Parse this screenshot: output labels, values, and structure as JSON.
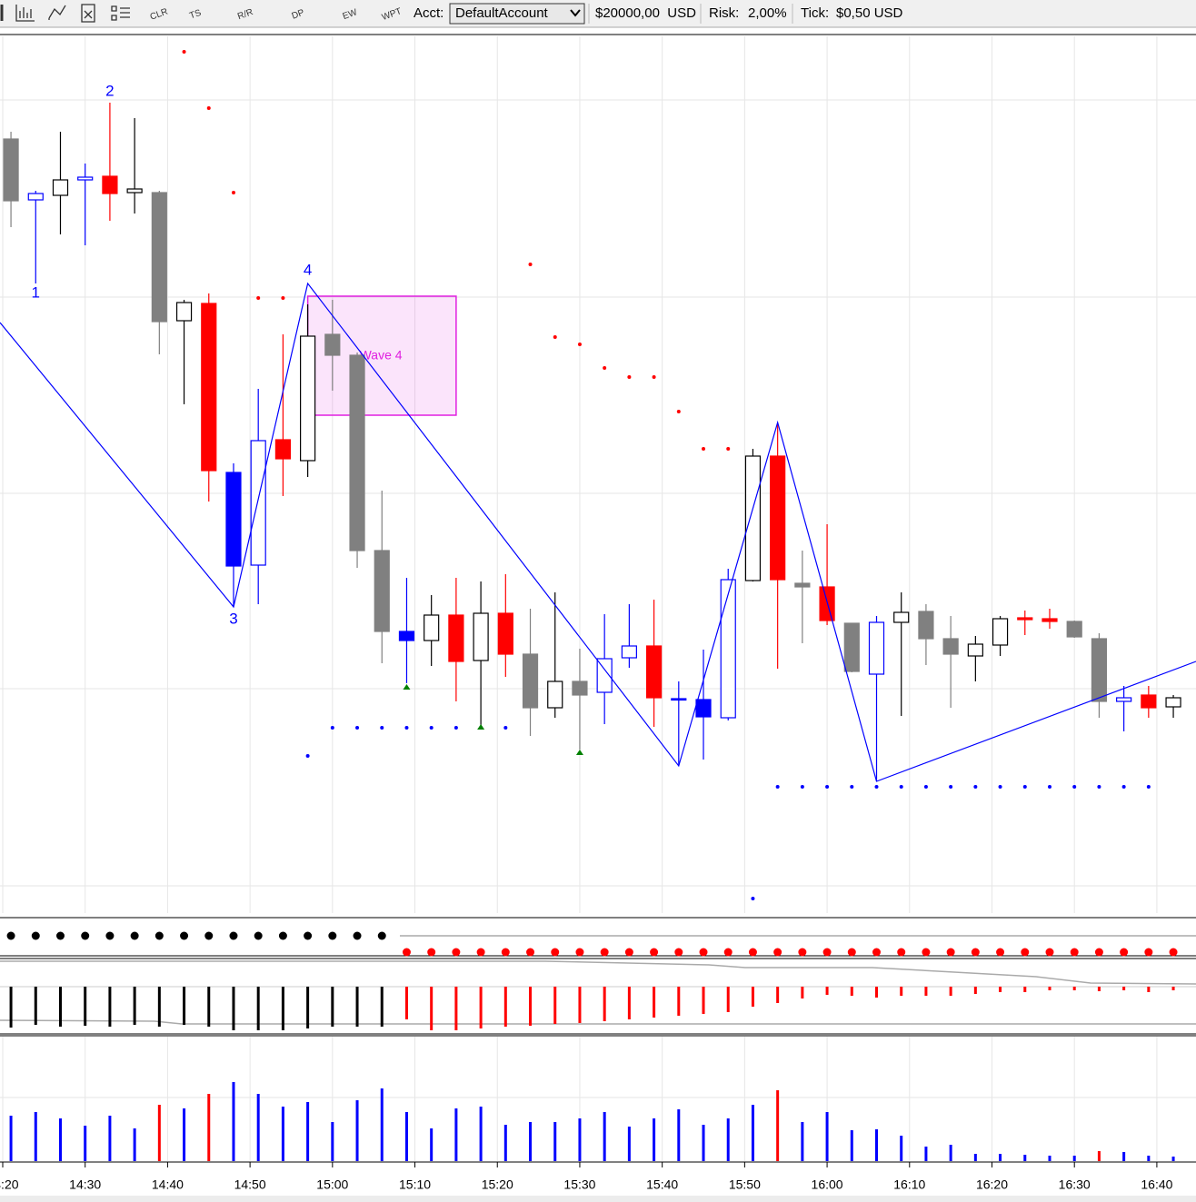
{
  "toolbar": {
    "buttons": [
      "CLR",
      "TS",
      "R/R",
      "DP",
      "EW",
      "WPT"
    ],
    "acct_label": "Acct:",
    "account": "DefaultAccount",
    "balance": "$20000,00  USD",
    "risk_label": "Risk:",
    "risk": "2,00%",
    "tick_label": "Tick:",
    "tick": "$0,50 USD"
  },
  "chart_data": {
    "type": "candlestick",
    "xlim": [
      859.67,
      1004.75
    ],
    "ylim": [
      0,
      965
    ],
    "xticks": [
      {
        "value": 860,
        "label": "14:20"
      },
      {
        "value": 870,
        "label": "14:30"
      },
      {
        "value": 880,
        "label": "14:40"
      },
      {
        "value": 890,
        "label": "14:50"
      },
      {
        "value": 900,
        "label": "15:00"
      },
      {
        "value": 910,
        "label": "15:10"
      },
      {
        "value": 920,
        "label": "15:20"
      },
      {
        "value": 930,
        "label": "15:30"
      },
      {
        "value": 940,
        "label": "15:40"
      },
      {
        "value": 950,
        "label": "15:50"
      },
      {
        "value": 960,
        "label": "16:00"
      },
      {
        "value": 970,
        "label": "16:10"
      },
      {
        "value": 980,
        "label": "16:20"
      },
      {
        "value": 990,
        "label": "16:30"
      },
      {
        "value": 1000,
        "label": "16:40"
      }
    ],
    "grid": true,
    "x": [
      861,
      864,
      867,
      870,
      873,
      876,
      879,
      882,
      885,
      888,
      891,
      894,
      897,
      900,
      903,
      906,
      909,
      912,
      915,
      918,
      921,
      924,
      927,
      930,
      933,
      936,
      939,
      942,
      945,
      948,
      951,
      954,
      957,
      960,
      963,
      966,
      969,
      972,
      975,
      978,
      981,
      984,
      987,
      990,
      993,
      996,
      999,
      1002
    ],
    "open": [
      852,
      785,
      790,
      807,
      811,
      793,
      793,
      652,
      671,
      382,
      383,
      521,
      498,
      637,
      614,
      399,
      310,
      300,
      328,
      278,
      330,
      285,
      226,
      255,
      243,
      281,
      294,
      236,
      235,
      215,
      366,
      503,
      363,
      359,
      319,
      263,
      320,
      332,
      302,
      283,
      295,
      325,
      324,
      321,
      302,
      233,
      240,
      227
    ],
    "high": [
      860,
      795,
      860,
      825,
      892,
      875,
      795,
      675,
      682,
      495,
      577,
      637,
      670,
      675,
      617,
      465,
      369,
      350,
      369,
      365,
      373,
      335,
      353,
      291,
      329,
      340,
      345,
      255,
      290,
      379,
      511,
      539,
      399,
      428,
      319,
      327,
      353,
      340,
      327,
      305,
      327,
      333,
      335,
      322,
      308,
      250,
      250,
      240
    ],
    "low": [
      755,
      693,
      747,
      735,
      762,
      770,
      615,
      560,
      453,
      337,
      340,
      459,
      480,
      575,
      380,
      275,
      253,
      272,
      233,
      205,
      260,
      195,
      215,
      180,
      208,
      270,
      205,
      162,
      169,
      212,
      365,
      269,
      297,
      317,
      265,
      145,
      217,
      273,
      226,
      255,
      283,
      306,
      313,
      303,
      215,
      200,
      215,
      215
    ],
    "close": [
      784,
      792,
      807,
      810,
      792,
      797,
      651,
      672,
      487,
      485,
      520,
      500,
      635,
      614,
      399,
      310,
      300,
      328,
      277,
      330,
      285,
      226,
      255,
      240,
      280,
      294,
      237,
      235,
      216,
      367,
      503,
      367,
      359,
      322,
      266,
      320,
      331,
      302,
      285,
      296,
      324,
      323,
      321,
      304,
      233,
      237,
      226,
      237
    ],
    "fills": [
      "#808080",
      "#ffffff",
      "#ffffff",
      "#ffffff",
      "#ff0000",
      "#ffffff",
      "#808080",
      "#ffffff",
      "#ff0000",
      "#0000ff",
      "#ffffff",
      "#ff0000",
      "#ffffff",
      "#808080",
      "#808080",
      "#808080",
      "#0000ff",
      "#ffffff",
      "#ff0000",
      "#ffffff",
      "#ff0000",
      "#808080",
      "#ffffff",
      "#808080",
      "#ffffff",
      "#ffffff",
      "#ff0000",
      "#0000ff",
      "#0000ff",
      "#ffffff",
      "#ffffff",
      "#ff0000",
      "#808080",
      "#ff0000",
      "#808080",
      "#ffffff",
      "#ffffff",
      "#808080",
      "#808080",
      "#ffffff",
      "#ffffff",
      "#ff0000",
      "#ff0000",
      "#808080",
      "#808080",
      "#ffffff",
      "#ff0000",
      "#ffffff"
    ],
    "edges": [
      "#808080",
      "#0000ff",
      "#000000",
      "#0000ff",
      "#ff0000",
      "#000000",
      "#808080",
      "#000000",
      "#ff0000",
      "#0000ff",
      "#0000ff",
      "#ff0000",
      "#000000",
      "#808080",
      "#808080",
      "#808080",
      "#0000ff",
      "#000000",
      "#ff0000",
      "#000000",
      "#ff0000",
      "#808080",
      "#000000",
      "#808080",
      "#0000ff",
      "#0000ff",
      "#ff0000",
      "#0000ff",
      "#0000ff",
      "#0000ff",
      "#000000",
      "#ff0000",
      "#808080",
      "#ff0000",
      "#808080",
      "#0000ff",
      "#000000",
      "#808080",
      "#808080",
      "#000000",
      "#000000",
      "#ff0000",
      "#ff0000",
      "#808080",
      "#808080",
      "#0000ff",
      "#ff0000",
      "#000000"
    ],
    "stops_above": {
      "color": "#ff0000",
      "values": [
        null,
        null,
        null,
        null,
        null,
        null,
        null,
        948,
        886,
        793,
        677,
        677,
        null,
        null,
        null,
        null,
        null,
        null,
        null,
        null,
        null,
        714,
        634,
        626,
        600,
        590,
        590,
        552,
        511,
        511,
        null,
        null,
        null,
        null,
        null,
        null,
        null,
        null,
        null,
        null,
        null,
        null,
        null,
        null,
        null,
        null,
        null,
        null
      ]
    },
    "stops_below": {
      "color": "#0000ff",
      "values": [
        null,
        null,
        null,
        null,
        null,
        null,
        null,
        null,
        null,
        null,
        null,
        null,
        173,
        204,
        204,
        204,
        204,
        204,
        204,
        204,
        204,
        null,
        null,
        null,
        null,
        null,
        null,
        null,
        null,
        null,
        16,
        139,
        139,
        139,
        139,
        139,
        139,
        139,
        139,
        139,
        139,
        139,
        139,
        139,
        139,
        139,
        139,
        null
      ]
    },
    "signals": {
      "color": "#008000",
      "values": [
        null,
        null,
        null,
        null,
        null,
        null,
        null,
        null,
        null,
        null,
        null,
        null,
        null,
        null,
        null,
        null,
        249,
        null,
        null,
        205,
        null,
        null,
        null,
        177,
        null,
        null,
        null,
        null,
        null,
        null,
        null,
        null,
        null,
        null,
        null,
        null,
        null,
        null,
        null,
        null,
        null,
        null,
        null,
        null,
        null,
        null,
        null,
        null
      ]
    },
    "zigzag": {
      "color": "#0000ff",
      "x": [
        859.67,
        888,
        897,
        942,
        954,
        966,
        1004.75
      ],
      "values": [
        650,
        337,
        693,
        162,
        540,
        145,
        277
      ]
    },
    "annotations": [
      {
        "text": "1",
        "x": 864,
        "y": 682
      },
      {
        "text": "2",
        "x": 873,
        "y": 904
      },
      {
        "text": "3",
        "x": 888,
        "y": 323
      },
      {
        "text": "4",
        "x": 897,
        "y": 707
      }
    ],
    "wave_box": {
      "label": "Wave 4",
      "x": [
        897,
        915
      ],
      "y": [
        548,
        679
      ],
      "color": "#e020e0"
    },
    "momentum": {
      "ylim": [
        -52,
        31
      ],
      "values": [
        -45,
        -42,
        -44,
        -43,
        -44,
        -42,
        -44,
        -42,
        -44,
        -48,
        -48,
        -48,
        -46,
        -44,
        -44,
        -44,
        -36,
        -48,
        -48,
        -46,
        -44,
        -43,
        -41,
        -40,
        -38,
        -36,
        -34,
        -32,
        -30,
        -28,
        -22,
        -18,
        -13,
        -9,
        -10,
        -12,
        -10,
        -10,
        -10,
        -8,
        -6,
        -6,
        -4,
        -4,
        -5,
        -4,
        -6,
        -4
      ],
      "colors": [
        "#000000",
        "#000000",
        "#000000",
        "#000000",
        "#000000",
        "#000000",
        "#000000",
        "#000000",
        "#000000",
        "#000000",
        "#000000",
        "#000000",
        "#000000",
        "#000000",
        "#000000",
        "#000000",
        "#ff0000",
        "#ff0000",
        "#ff0000",
        "#ff0000",
        "#ff0000",
        "#ff0000",
        "#ff0000",
        "#ff0000",
        "#ff0000",
        "#ff0000",
        "#ff0000",
        "#ff0000",
        "#ff0000",
        "#ff0000",
        "#ff0000",
        "#ff0000",
        "#ff0000",
        "#ff0000",
        "#ff0000",
        "#ff0000",
        "#ff0000",
        "#ff0000",
        "#ff0000",
        "#ff0000",
        "#ff0000",
        "#ff0000",
        "#ff0000",
        "#ff0000",
        "#ff0000",
        "#ff0000",
        "#ff0000",
        "#ff0000"
      ]
    },
    "volume": {
      "ylim": [
        0,
        138
      ],
      "values": [
        50,
        54,
        47,
        39,
        50,
        36,
        62,
        58,
        74,
        87,
        74,
        60,
        65,
        43,
        67,
        80,
        54,
        36,
        58,
        60,
        40,
        43,
        43,
        47,
        54,
        38,
        47,
        57,
        40,
        47,
        62,
        78,
        43,
        54,
        34,
        35,
        28,
        16,
        18,
        8,
        8,
        7,
        6,
        6,
        11,
        10,
        6,
        5
      ],
      "colors": [
        "#0000ff",
        "#0000ff",
        "#0000ff",
        "#0000ff",
        "#0000ff",
        "#0000ff",
        "#ff0000",
        "#0000ff",
        "#ff0000",
        "#0000ff",
        "#0000ff",
        "#0000ff",
        "#0000ff",
        "#0000ff",
        "#0000ff",
        "#0000ff",
        "#0000ff",
        "#0000ff",
        "#0000ff",
        "#0000ff",
        "#0000ff",
        "#0000ff",
        "#0000ff",
        "#0000ff",
        "#0000ff",
        "#0000ff",
        "#0000ff",
        "#0000ff",
        "#0000ff",
        "#0000ff",
        "#0000ff",
        "#ff0000",
        "#0000ff",
        "#0000ff",
        "#0000ff",
        "#0000ff",
        "#0000ff",
        "#0000ff",
        "#0000ff",
        "#0000ff",
        "#0000ff",
        "#0000ff",
        "#0000ff",
        "#0000ff",
        "#ff0000",
        "#0000ff",
        "#0000ff",
        "#0000ff"
      ]
    }
  }
}
